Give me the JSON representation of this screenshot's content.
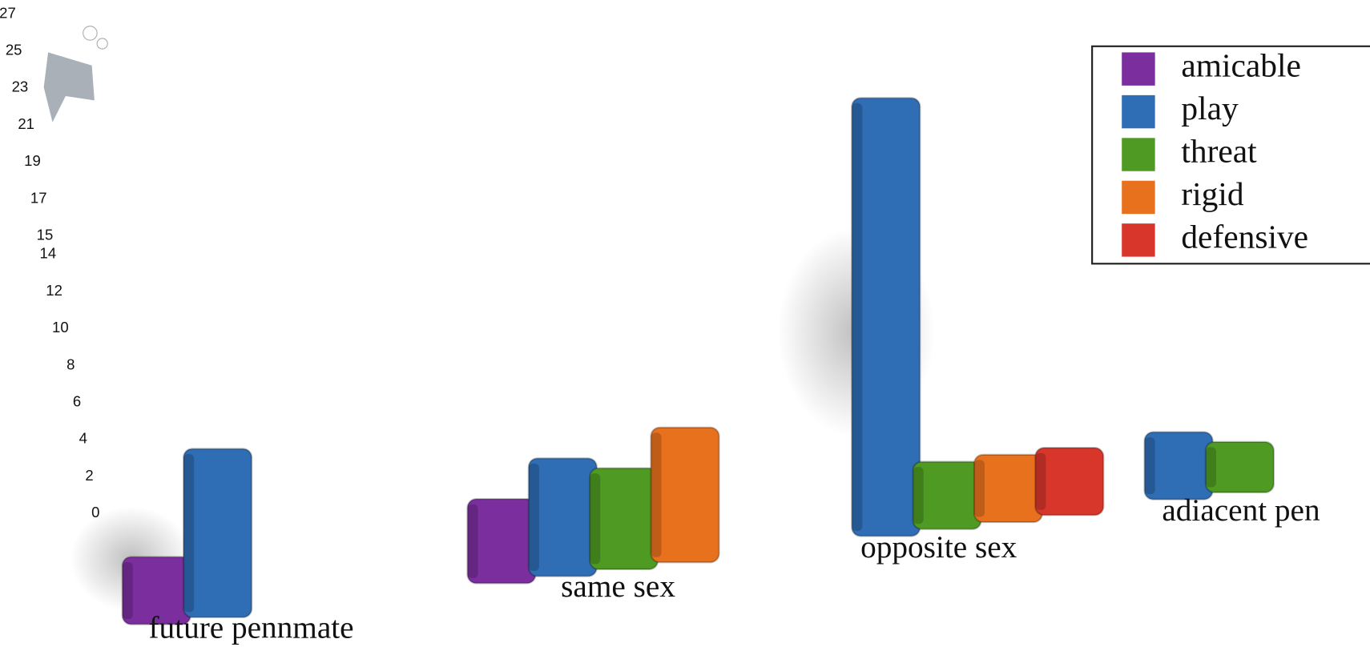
{
  "chart_data": {
    "type": "bar",
    "categories": [
      "future pennmate",
      "same sex",
      "opposite sex",
      "adiacent pen"
    ],
    "series": [
      {
        "name": "amicable",
        "color": "#7b2f9e",
        "values": [
          4,
          5,
          null,
          null
        ]
      },
      {
        "name": "play",
        "color": "#2f6db5",
        "values": [
          10,
          7,
          26,
          4
        ]
      },
      {
        "name": "threat",
        "color": "#4f9a23",
        "values": [
          null,
          6,
          4,
          3
        ]
      },
      {
        "name": "rigid",
        "color": "#e8711e",
        "values": [
          null,
          8,
          4,
          null
        ]
      },
      {
        "name": "defensive",
        "color": "#d8362b",
        "values": [
          null,
          null,
          4,
          null
        ]
      }
    ],
    "ylim": [
      0,
      27
    ],
    "yticks": [
      0,
      2,
      4,
      6,
      8,
      10,
      12,
      14,
      15,
      17,
      19,
      21,
      23,
      25,
      27
    ]
  }
}
